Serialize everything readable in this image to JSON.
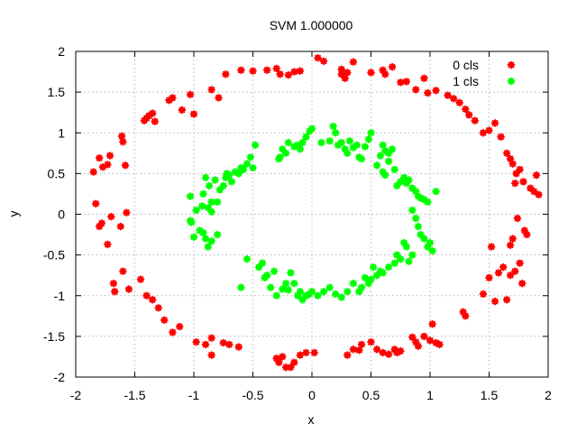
{
  "chart_data": {
    "type": "scatter",
    "title": "SVM 1.000000",
    "xlabel": "x",
    "ylabel": "y",
    "xlim": [
      -2,
      2
    ],
    "ylim": [
      -2,
      2
    ],
    "xticks": [
      "-2",
      "-1.5",
      "-1",
      "-0.5",
      "0",
      "0.5",
      "1",
      "1.5",
      "2"
    ],
    "yticks": [
      "-2",
      "-1.5",
      "-1",
      "-0.5",
      "0",
      "0.5",
      "1",
      "1.5",
      "2"
    ],
    "grid": true,
    "legend_position": "top-right",
    "series": [
      {
        "name": "0 cls",
        "color": "#ff0000",
        "marker": "star",
        "points": [
          [
            -1.85,
            0.52
          ],
          [
            -1.8,
            0.69
          ],
          [
            -1.77,
            0.58
          ],
          [
            -1.73,
            0.61
          ],
          [
            -1.71,
            0.72
          ],
          [
            -1.61,
            0.96
          ],
          [
            -1.6,
            0.89
          ],
          [
            -1.58,
            0.6
          ],
          [
            -1.42,
            1.15
          ],
          [
            -1.4,
            1.18
          ],
          [
            -1.38,
            1.21
          ],
          [
            -1.35,
            1.24
          ],
          [
            -1.33,
            1.14
          ],
          [
            -1.21,
            1.4
          ],
          [
            -1.18,
            1.43
          ],
          [
            -1.1,
            1.28
          ],
          [
            -1.03,
            1.47
          ],
          [
            -1.0,
            1.23
          ],
          [
            -0.85,
            1.53
          ],
          [
            -0.79,
            1.43
          ],
          [
            -0.73,
            1.72
          ],
          [
            -0.6,
            1.77
          ],
          [
            -0.5,
            1.76
          ],
          [
            -0.38,
            1.77
          ],
          [
            -0.3,
            1.79
          ],
          [
            -0.27,
            1.72
          ],
          [
            -0.2,
            1.71
          ],
          [
            -0.15,
            1.75
          ],
          [
            -0.1,
            1.76
          ],
          [
            0.05,
            1.92
          ],
          [
            0.1,
            1.88
          ],
          [
            0.25,
            1.78
          ],
          [
            0.25,
            1.72
          ],
          [
            0.28,
            1.67
          ],
          [
            0.3,
            1.74
          ],
          [
            0.35,
            1.87
          ],
          [
            0.5,
            1.74
          ],
          [
            0.6,
            1.77
          ],
          [
            0.62,
            1.72
          ],
          [
            0.68,
            1.81
          ],
          [
            0.75,
            1.62
          ],
          [
            0.8,
            1.63
          ],
          [
            0.88,
            1.53
          ],
          [
            0.95,
            1.67
          ],
          [
            0.98,
            1.49
          ],
          [
            1.05,
            1.52
          ],
          [
            1.15,
            1.46
          ],
          [
            1.2,
            1.42
          ],
          [
            1.25,
            1.37
          ],
          [
            1.3,
            1.29
          ],
          [
            1.33,
            1.22
          ],
          [
            1.38,
            1.15
          ],
          [
            1.45,
            1.0
          ],
          [
            1.5,
            1.03
          ],
          [
            1.55,
            1.12
          ],
          [
            1.6,
            0.95
          ],
          [
            1.65,
            0.75
          ],
          [
            1.7,
            0.62
          ],
          [
            1.73,
            0.5
          ],
          [
            1.76,
            0.55
          ],
          [
            1.79,
            0.4
          ],
          [
            1.85,
            0.32
          ],
          [
            1.88,
            0.28
          ],
          [
            1.9,
            0.48
          ],
          [
            1.92,
            0.24
          ],
          [
            1.68,
            0.68
          ],
          [
            1.72,
            0.38
          ],
          [
            -1.83,
            0.13
          ],
          [
            -1.8,
            -0.15
          ],
          [
            -1.78,
            -0.11
          ],
          [
            -1.73,
            -0.37
          ],
          [
            -1.7,
            -0.03
          ],
          [
            -1.62,
            -0.15
          ],
          [
            -1.57,
            0.02
          ],
          [
            -1.68,
            -0.85
          ],
          [
            -1.67,
            -0.95
          ],
          [
            -1.6,
            -0.7
          ],
          [
            -1.55,
            -0.92
          ],
          [
            -1.45,
            -0.8
          ],
          [
            -1.4,
            -1.0
          ],
          [
            -1.35,
            -1.05
          ],
          [
            -1.3,
            -1.15
          ],
          [
            -1.25,
            -1.3
          ],
          [
            -1.18,
            -1.45
          ],
          [
            -1.12,
            -1.38
          ],
          [
            -0.98,
            -1.57
          ],
          [
            -0.9,
            -1.6
          ],
          [
            -0.85,
            -1.52
          ],
          [
            -0.85,
            -1.73
          ],
          [
            -0.75,
            -1.58
          ],
          [
            -0.7,
            -1.6
          ],
          [
            -0.62,
            -1.63
          ],
          [
            -0.3,
            -1.77
          ],
          [
            -0.28,
            -1.82
          ],
          [
            -0.25,
            -1.75
          ],
          [
            -0.22,
            -1.88
          ],
          [
            -0.18,
            -1.88
          ],
          [
            -0.15,
            -1.82
          ],
          [
            -0.1,
            -1.73
          ],
          [
            -0.05,
            -1.7
          ],
          [
            0.02,
            -1.7
          ],
          [
            0.3,
            -1.73
          ],
          [
            0.35,
            -1.66
          ],
          [
            0.4,
            -1.67
          ],
          [
            0.42,
            -1.6
          ],
          [
            0.5,
            -1.57
          ],
          [
            0.55,
            -1.66
          ],
          [
            0.6,
            -1.7
          ],
          [
            0.65,
            -1.72
          ],
          [
            0.7,
            -1.66
          ],
          [
            0.72,
            -1.7
          ],
          [
            0.75,
            -1.68
          ],
          [
            0.85,
            -1.51
          ],
          [
            0.88,
            -1.57
          ],
          [
            0.9,
            -1.62
          ],
          [
            0.95,
            -1.5
          ],
          [
            1.0,
            -1.55
          ],
          [
            1.05,
            -1.58
          ],
          [
            1.08,
            -1.6
          ],
          [
            1.02,
            -1.35
          ],
          [
            1.28,
            -1.2
          ],
          [
            1.3,
            -1.25
          ],
          [
            1.45,
            -0.98
          ],
          [
            1.5,
            -0.78
          ],
          [
            1.52,
            -0.4
          ],
          [
            1.55,
            -1.07
          ],
          [
            1.58,
            -0.72
          ],
          [
            1.62,
            -0.65
          ],
          [
            1.65,
            -1.05
          ],
          [
            1.68,
            -0.75
          ],
          [
            1.7,
            -0.3
          ],
          [
            1.72,
            -0.7
          ],
          [
            1.74,
            -0.05
          ],
          [
            1.76,
            -0.6
          ],
          [
            1.78,
            -0.85
          ],
          [
            1.8,
            -0.2
          ],
          [
            1.82,
            -0.25
          ],
          [
            1.68,
            -0.38
          ]
        ]
      },
      {
        "name": "1 cls",
        "color": "#00ff00",
        "marker": "star",
        "points": [
          [
            -1.03,
            0.22
          ],
          [
            -1.03,
            -0.08
          ],
          [
            -1.02,
            -0.1
          ],
          [
            -1.0,
            -0.28
          ],
          [
            -0.98,
            0.05
          ],
          [
            -0.95,
            -0.2
          ],
          [
            -0.93,
            0.1
          ],
          [
            -0.92,
            -0.23
          ],
          [
            -0.92,
            0.25
          ],
          [
            -0.9,
            -0.3
          ],
          [
            -0.9,
            0.45
          ],
          [
            -0.88,
            0.08
          ],
          [
            -0.88,
            -0.4
          ],
          [
            -0.87,
            0.35
          ],
          [
            -0.85,
            0.15
          ],
          [
            -0.85,
            -0.33
          ],
          [
            -0.85,
            0.03
          ],
          [
            -0.82,
            0.42
          ],
          [
            -0.8,
            0.15
          ],
          [
            -0.8,
            -0.25
          ],
          [
            -0.78,
            0.3
          ],
          [
            -0.75,
            0.35
          ],
          [
            -0.73,
            0.45
          ],
          [
            -0.72,
            0.5
          ],
          [
            -0.7,
            0.48
          ],
          [
            -0.68,
            0.4
          ],
          [
            -0.65,
            0.52
          ],
          [
            -0.62,
            0.5
          ],
          [
            -0.6,
            0.57
          ],
          [
            -0.58,
            0.55
          ],
          [
            -0.55,
            0.62
          ],
          [
            -0.55,
            -0.55
          ],
          [
            -0.52,
            0.7
          ],
          [
            -0.5,
            0.57
          ],
          [
            -0.48,
            0.85
          ],
          [
            -0.45,
            -0.65
          ],
          [
            -0.42,
            -0.6
          ],
          [
            -0.4,
            -0.78
          ],
          [
            -0.38,
            -0.75
          ],
          [
            -0.35,
            -0.9
          ],
          [
            -0.32,
            -0.7
          ],
          [
            -0.3,
            -1.0
          ],
          [
            -0.25,
            -0.92
          ],
          [
            -0.22,
            -0.85
          ],
          [
            -0.2,
            -0.93
          ],
          [
            -0.18,
            -0.72
          ],
          [
            -0.15,
            -0.85
          ],
          [
            -0.12,
            -1.0
          ],
          [
            -0.1,
            -0.95
          ],
          [
            -0.08,
            -1.05
          ],
          [
            -0.05,
            -1.0
          ],
          [
            -0.02,
            -0.98
          ],
          [
            0.0,
            -0.95
          ],
          [
            -0.25,
            0.8
          ],
          [
            -0.28,
            0.68
          ],
          [
            -0.27,
            0.7
          ],
          [
            -0.22,
            0.75
          ],
          [
            -0.2,
            0.88
          ],
          [
            -0.15,
            0.83
          ],
          [
            -0.12,
            0.85
          ],
          [
            -0.1,
            0.8
          ],
          [
            -0.08,
            0.88
          ],
          [
            -0.05,
            0.95
          ],
          [
            -0.02,
            1.02
          ],
          [
            0.0,
            1.05
          ],
          [
            0.08,
            0.88
          ],
          [
            0.15,
            0.9
          ],
          [
            0.18,
            1.08
          ],
          [
            0.2,
            1.0
          ],
          [
            0.22,
            0.85
          ],
          [
            0.25,
            0.88
          ],
          [
            0.28,
            0.8
          ],
          [
            0.3,
            0.75
          ],
          [
            0.32,
            0.9
          ],
          [
            0.35,
            0.82
          ],
          [
            0.38,
            0.85
          ],
          [
            0.4,
            0.7
          ],
          [
            0.42,
            0.68
          ],
          [
            0.45,
            0.83
          ],
          [
            0.48,
            0.92
          ],
          [
            0.5,
            1.0
          ],
          [
            0.55,
            0.6
          ],
          [
            0.58,
            0.72
          ],
          [
            0.6,
            0.85
          ],
          [
            0.62,
            0.78
          ],
          [
            0.65,
            0.75
          ],
          [
            0.68,
            0.8
          ],
          [
            0.65,
            0.65
          ],
          [
            0.6,
            0.52
          ],
          [
            0.62,
            0.48
          ],
          [
            0.7,
            0.55
          ],
          [
            0.72,
            0.35
          ],
          [
            0.75,
            0.4
          ],
          [
            0.78,
            0.45
          ],
          [
            0.8,
            0.38
          ],
          [
            0.82,
            0.42
          ],
          [
            0.85,
            0.32
          ],
          [
            0.88,
            0.28
          ],
          [
            0.9,
            0.22
          ],
          [
            0.92,
            0.2
          ],
          [
            0.95,
            0.18
          ],
          [
            0.98,
            0.15
          ],
          [
            0.85,
            0.05
          ],
          [
            0.88,
            -0.05
          ],
          [
            0.9,
            -0.15
          ],
          [
            0.92,
            -0.25
          ],
          [
            0.95,
            -0.3
          ],
          [
            0.98,
            -0.4
          ],
          [
            1.0,
            -0.35
          ],
          [
            1.02,
            -0.45
          ],
          [
            1.05,
            0.28
          ],
          [
            0.85,
            -0.5
          ],
          [
            0.82,
            -0.58
          ],
          [
            0.8,
            -0.4
          ],
          [
            0.78,
            -0.35
          ],
          [
            0.75,
            -0.55
          ],
          [
            0.72,
            -0.5
          ],
          [
            0.7,
            -0.6
          ],
          [
            0.65,
            -0.65
          ],
          [
            0.6,
            -0.72
          ],
          [
            0.58,
            -0.7
          ],
          [
            0.55,
            -0.75
          ],
          [
            0.52,
            -0.65
          ],
          [
            0.5,
            -0.8
          ],
          [
            0.48,
            -0.85
          ],
          [
            0.45,
            -0.78
          ],
          [
            0.42,
            -0.9
          ],
          [
            0.4,
            -0.95
          ],
          [
            0.35,
            -0.85
          ],
          [
            0.3,
            -0.95
          ],
          [
            0.25,
            -1.02
          ],
          [
            0.2,
            -0.98
          ],
          [
            0.15,
            -0.9
          ],
          [
            0.1,
            -0.95
          ],
          [
            0.05,
            -1.0
          ],
          [
            -0.6,
            -0.9
          ]
        ]
      }
    ]
  }
}
